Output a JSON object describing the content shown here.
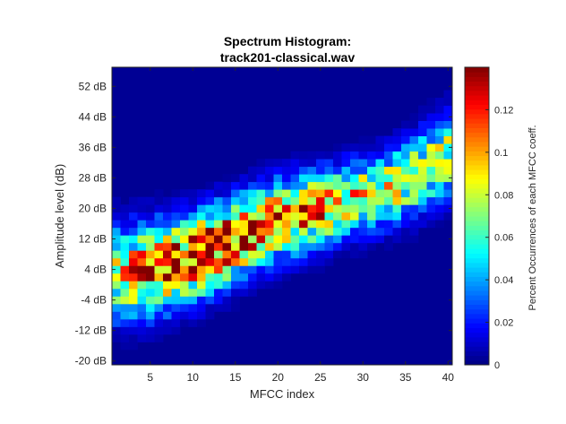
{
  "chart_data": {
    "type": "heatmap",
    "title": "Spectrum Histogram:",
    "subtitle": "track201-classical.wav",
    "xlabel": "MFCC index",
    "ylabel": "Amplitude level (dB)",
    "colorbar_label": "Percent Occurrences of each MFCC coeff.",
    "colormap": "jet",
    "xlim": [
      0.5,
      40.5
    ],
    "ylim": [
      -21,
      57
    ],
    "x_ticks": [
      5,
      10,
      15,
      20,
      25,
      30,
      35,
      40
    ],
    "x_tick_labels": [
      "5",
      "10",
      "15",
      "20",
      "25",
      "30",
      "35",
      "40"
    ],
    "y_ticks": [
      -20,
      -12,
      -4,
      4,
      12,
      20,
      28,
      36,
      44,
      52
    ],
    "y_tick_labels": [
      "-20 dB",
      "-12 dB",
      "-4 dB",
      "4 dB",
      "12 dB",
      "20 dB",
      "28 dB",
      "36 dB",
      "44 dB",
      "52 dB"
    ],
    "colorbar_range": [
      0,
      0.14
    ],
    "colorbar_ticks": [
      0,
      0.02,
      0.04,
      0.06,
      0.08,
      0.1,
      0.12
    ],
    "colorbar_tick_labels": [
      "0",
      "0.02",
      "0.04",
      "0.06",
      "0.08",
      "0.1",
      "0.12"
    ],
    "ridge_center_db_by_mfcc": [
      {
        "mfcc": 1,
        "db": 3
      },
      {
        "mfcc": 5,
        "db": 4
      },
      {
        "mfcc": 10,
        "db": 7
      },
      {
        "mfcc": 15,
        "db": 12
      },
      {
        "mfcc": 20,
        "db": 17
      },
      {
        "mfcc": 25,
        "db": 20
      },
      {
        "mfcc": 30,
        "db": 23
      },
      {
        "mfcc": 35,
        "db": 27
      },
      {
        "mfcc": 40,
        "db": 34
      }
    ],
    "ridge_width_db_by_mfcc": [
      {
        "mfcc": 1,
        "db": 8
      },
      {
        "mfcc": 10,
        "db": 7
      },
      {
        "mfcc": 20,
        "db": 6.5
      },
      {
        "mfcc": 30,
        "db": 6
      },
      {
        "mfcc": 40,
        "db": 7
      }
    ],
    "peak_value_by_mfcc": [
      {
        "mfcc": 1,
        "value": 0.08
      },
      {
        "mfcc": 5,
        "value": 0.11
      },
      {
        "mfcc": 12,
        "value": 0.13
      },
      {
        "mfcc": 20,
        "value": 0.11
      },
      {
        "mfcc": 30,
        "value": 0.09
      },
      {
        "mfcc": 40,
        "value": 0.075
      }
    ],
    "grid": false
  }
}
